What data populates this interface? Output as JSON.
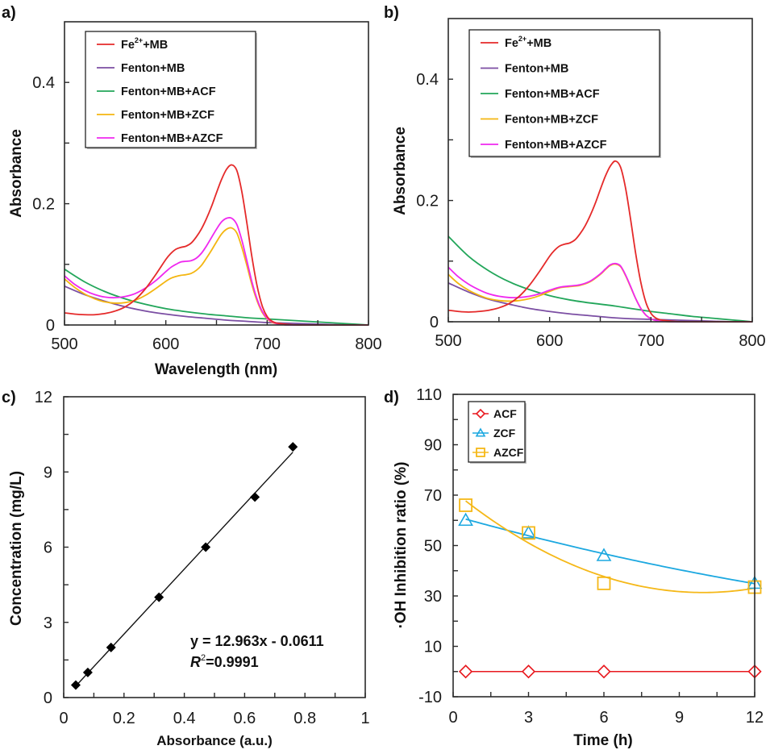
{
  "figure": {
    "panels": [
      "a)",
      "b)",
      "c)",
      "d)"
    ]
  },
  "chart_data": [
    {
      "id": "a",
      "type": "line",
      "panel_label": "a)",
      "title": "",
      "xlabel": "Wavelength (nm)",
      "ylabel": "Absorbance",
      "xlim": [
        500,
        800
      ],
      "ylim": [
        0,
        0.5
      ],
      "xticks": [
        500,
        600,
        700,
        800
      ],
      "xminor": [
        550,
        650,
        750
      ],
      "yticks": [
        0,
        0.2,
        0.4
      ],
      "ytick_labels": [
        "0",
        "0.2",
        "0.4"
      ],
      "yminor": [
        0.1,
        0.3
      ],
      "legend_position": "top-left",
      "series": [
        {
          "name": "Fe2+ +MB",
          "label_main": "Fe",
          "label_sup": "2+",
          "label_tail": "+MB",
          "color": "#e52a2a",
          "x": [
            500,
            510,
            520,
            530,
            540,
            550,
            560,
            570,
            580,
            590,
            600,
            605,
            610,
            615,
            620,
            625,
            630,
            635,
            640,
            645,
            650,
            655,
            660,
            665,
            670,
            675,
            680,
            685,
            690,
            695,
            700,
            705,
            710,
            715,
            720,
            730,
            740,
            760,
            780,
            800
          ],
          "y": [
            0.02,
            0.018,
            0.017,
            0.017,
            0.019,
            0.023,
            0.03,
            0.042,
            0.06,
            0.083,
            0.108,
            0.118,
            0.125,
            0.128,
            0.13,
            0.135,
            0.145,
            0.158,
            0.175,
            0.195,
            0.218,
            0.24,
            0.257,
            0.264,
            0.255,
            0.22,
            0.168,
            0.112,
            0.065,
            0.032,
            0.014,
            0.006,
            0.003,
            0.002,
            0.001,
            0.0,
            0.0,
            0.0,
            0.0,
            0.0
          ]
        },
        {
          "name": "Fenton+MB",
          "label_main": "Fenton+MB",
          "label_sup": "",
          "label_tail": "",
          "color": "#7b4ea3",
          "x": [
            500,
            520,
            540,
            560,
            580,
            600,
            620,
            640,
            660,
            680,
            700,
            720,
            740,
            760,
            780,
            800
          ],
          "y": [
            0.064,
            0.05,
            0.039,
            0.03,
            0.023,
            0.018,
            0.014,
            0.011,
            0.008,
            0.006,
            0.004,
            0.003,
            0.002,
            0.001,
            0.0,
            0.0
          ]
        },
        {
          "name": "Fenton+MB+ACF",
          "label_main": "Fenton+MB+ACF",
          "label_sup": "",
          "label_tail": "",
          "color": "#22a65a",
          "x": [
            500,
            520,
            540,
            560,
            580,
            600,
            620,
            640,
            660,
            680,
            700,
            720,
            740,
            760,
            780,
            800
          ],
          "y": [
            0.092,
            0.071,
            0.055,
            0.043,
            0.034,
            0.027,
            0.022,
            0.018,
            0.015,
            0.012,
            0.01,
            0.008,
            0.006,
            0.004,
            0.002,
            0.0
          ]
        },
        {
          "name": "Fenton+MB+ZCF",
          "label_main": "Fenton+MB+ZCF",
          "label_sup": "",
          "label_tail": "",
          "color": "#f4b611",
          "x": [
            500,
            510,
            520,
            530,
            540,
            550,
            560,
            570,
            580,
            590,
            600,
            605,
            610,
            615,
            620,
            625,
            630,
            635,
            640,
            645,
            650,
            655,
            660,
            665,
            670,
            675,
            680,
            685,
            690,
            695,
            700,
            705,
            710,
            715,
            720,
            740,
            760,
            800
          ],
          "y": [
            0.076,
            0.062,
            0.051,
            0.043,
            0.038,
            0.036,
            0.037,
            0.041,
            0.049,
            0.06,
            0.072,
            0.077,
            0.08,
            0.082,
            0.083,
            0.085,
            0.09,
            0.098,
            0.11,
            0.123,
            0.137,
            0.15,
            0.158,
            0.16,
            0.152,
            0.128,
            0.098,
            0.066,
            0.04,
            0.021,
            0.01,
            0.004,
            0.002,
            0.001,
            0.0,
            0.0,
            0.0,
            0.0
          ]
        },
        {
          "name": "Fenton+MB+AZCF",
          "label_main": "Fenton+MB+AZCF",
          "label_sup": "",
          "label_tail": "",
          "color": "#ef28ef",
          "x": [
            500,
            510,
            520,
            530,
            540,
            550,
            560,
            570,
            580,
            590,
            600,
            605,
            610,
            615,
            620,
            625,
            630,
            635,
            640,
            645,
            650,
            655,
            660,
            665,
            670,
            675,
            680,
            685,
            690,
            695,
            700,
            705,
            710,
            715,
            720,
            740,
            760,
            800
          ],
          "y": [
            0.081,
            0.067,
            0.057,
            0.05,
            0.046,
            0.045,
            0.047,
            0.052,
            0.061,
            0.073,
            0.088,
            0.095,
            0.1,
            0.104,
            0.105,
            0.106,
            0.11,
            0.118,
            0.13,
            0.144,
            0.158,
            0.17,
            0.176,
            0.176,
            0.166,
            0.14,
            0.106,
            0.071,
            0.043,
            0.023,
            0.011,
            0.005,
            0.002,
            0.001,
            0.0,
            0.0,
            0.0,
            0.0
          ]
        }
      ]
    },
    {
      "id": "b",
      "type": "line",
      "panel_label": "b)",
      "title": "",
      "xlabel": "",
      "ylabel": "Absorbance",
      "xlim": [
        500,
        800
      ],
      "ylim": [
        0,
        0.5
      ],
      "xticks": [
        500,
        600,
        700,
        800
      ],
      "xminor": [
        550,
        650,
        750
      ],
      "yticks": [
        0,
        0.2,
        0.4
      ],
      "ytick_labels": [
        "0",
        "0.2",
        "0.4"
      ],
      "yminor": [
        0.1,
        0.3
      ],
      "legend_position": "top-left",
      "series": [
        {
          "name": "Fe2+ +MB",
          "label_main": "Fe",
          "label_sup": "2+",
          "label_tail": "+MB",
          "color": "#e52a2a",
          "x": [
            500,
            510,
            520,
            530,
            540,
            550,
            560,
            570,
            580,
            590,
            600,
            605,
            610,
            615,
            620,
            625,
            630,
            635,
            640,
            645,
            650,
            655,
            660,
            665,
            670,
            675,
            680,
            685,
            690,
            695,
            700,
            705,
            710,
            715,
            720,
            730,
            740,
            760,
            780,
            800
          ],
          "y": [
            0.019,
            0.017,
            0.016,
            0.017,
            0.019,
            0.023,
            0.03,
            0.042,
            0.06,
            0.083,
            0.108,
            0.118,
            0.125,
            0.128,
            0.13,
            0.135,
            0.145,
            0.158,
            0.175,
            0.195,
            0.218,
            0.24,
            0.257,
            0.265,
            0.255,
            0.22,
            0.168,
            0.112,
            0.065,
            0.032,
            0.014,
            0.006,
            0.003,
            0.002,
            0.001,
            0.0,
            0.0,
            0.0,
            0.0,
            0.0
          ]
        },
        {
          "name": "Fenton+MB",
          "label_main": "Fenton+MB",
          "label_sup": "",
          "label_tail": "",
          "color": "#7b4ea3",
          "x": [
            500,
            520,
            540,
            560,
            580,
            600,
            620,
            640,
            660,
            680,
            700,
            720,
            740,
            760,
            780,
            800
          ],
          "y": [
            0.064,
            0.049,
            0.037,
            0.029,
            0.022,
            0.017,
            0.013,
            0.01,
            0.007,
            0.005,
            0.004,
            0.003,
            0.002,
            0.001,
            0.0,
            0.0
          ]
        },
        {
          "name": "Fenton+MB+ACF",
          "label_main": "Fenton+MB+ACF",
          "label_sup": "",
          "label_tail": "",
          "color": "#22a65a",
          "x": [
            500,
            520,
            540,
            560,
            580,
            600,
            620,
            640,
            660,
            680,
            700,
            720,
            740,
            760,
            780,
            800
          ],
          "y": [
            0.141,
            0.108,
            0.084,
            0.066,
            0.053,
            0.043,
            0.036,
            0.031,
            0.027,
            0.022,
            0.017,
            0.013,
            0.009,
            0.006,
            0.003,
            0.0
          ]
        },
        {
          "name": "Fenton+MB+ZCF",
          "label_main": "Fenton+MB+ZCF",
          "label_sup": "",
          "label_tail": "",
          "color": "#f4b611",
          "x": [
            500,
            510,
            520,
            530,
            540,
            550,
            560,
            570,
            580,
            590,
            600,
            610,
            620,
            630,
            640,
            650,
            655,
            660,
            665,
            670,
            675,
            680,
            685,
            690,
            695,
            700,
            705,
            710,
            720,
            740,
            760,
            800
          ],
          "y": [
            0.078,
            0.063,
            0.052,
            0.044,
            0.038,
            0.035,
            0.034,
            0.035,
            0.038,
            0.043,
            0.05,
            0.056,
            0.058,
            0.06,
            0.066,
            0.078,
            0.086,
            0.093,
            0.095,
            0.091,
            0.076,
            0.057,
            0.038,
            0.022,
            0.011,
            0.005,
            0.002,
            0.001,
            0.0,
            0.0,
            0.0,
            0.0
          ]
        },
        {
          "name": "Fenton+MB+AZCF",
          "label_main": "Fenton+MB+AZCF",
          "label_sup": "",
          "label_tail": "",
          "color": "#ef28ef",
          "x": [
            500,
            510,
            520,
            530,
            540,
            550,
            560,
            570,
            580,
            590,
            600,
            610,
            620,
            630,
            640,
            650,
            655,
            660,
            665,
            670,
            675,
            680,
            685,
            690,
            695,
            700,
            705,
            710,
            720,
            740,
            760,
            800
          ],
          "y": [
            0.09,
            0.074,
            0.062,
            0.053,
            0.046,
            0.042,
            0.04,
            0.04,
            0.042,
            0.046,
            0.052,
            0.057,
            0.059,
            0.061,
            0.067,
            0.079,
            0.087,
            0.094,
            0.096,
            0.092,
            0.077,
            0.058,
            0.038,
            0.022,
            0.011,
            0.005,
            0.002,
            0.001,
            0.0,
            0.0,
            0.0,
            0.0
          ]
        }
      ]
    },
    {
      "id": "c",
      "type": "scatter",
      "panel_label": "c)",
      "title": "",
      "xlabel": "Absorbance (a.u.)",
      "ylabel": "Concentration (mg/L)",
      "xlim": [
        0,
        1
      ],
      "ylim": [
        0,
        12
      ],
      "xticks": [
        0,
        0.2,
        0.4,
        0.6,
        0.8,
        1
      ],
      "xtick_labels": [
        "0",
        "0.2",
        "0.4",
        "0.6",
        "0.8",
        "1"
      ],
      "xminor": [
        0.1,
        0.3,
        0.5,
        0.7,
        0.9
      ],
      "yticks": [
        0,
        3,
        6,
        9,
        12
      ],
      "ytick_labels": [
        "0",
        "3",
        "6",
        "9",
        "12"
      ],
      "yminor": [
        1.5,
        4.5,
        7.5,
        10.5
      ],
      "marker": "diamond",
      "color": "#000000",
      "points": {
        "x": [
          0.04,
          0.08,
          0.157,
          0.316,
          0.471,
          0.634,
          0.76
        ],
        "y": [
          0.5,
          1,
          2,
          4,
          6,
          8,
          10
        ]
      },
      "fit": {
        "slope": 12.963,
        "intercept": -0.0611,
        "x_range": [
          0.04,
          0.76
        ]
      },
      "annotation": {
        "equation": "y = 12.963x - 0.0611",
        "r2_symbol": "R",
        "r2_sup": "2",
        "r2_value": "=0.9991"
      }
    },
    {
      "id": "d",
      "type": "scatter",
      "panel_label": "d)",
      "title": "",
      "xlabel": "Time (h)",
      "ylabel": "·OH Inhibition ratio (%)",
      "xlim": [
        0,
        12
      ],
      "ylim": [
        -10,
        110
      ],
      "xticks": [
        0,
        3,
        6,
        9,
        12
      ],
      "xtick_labels": [
        "0",
        "3",
        "6",
        "9",
        "12"
      ],
      "xminor": [
        1.5,
        4.5,
        7.5,
        10.5
      ],
      "yticks": [
        -10,
        10,
        30,
        50,
        70,
        90,
        110
      ],
      "ytick_labels": [
        "-10",
        "10",
        "30",
        "50",
        "70",
        "90",
        "110"
      ],
      "yminor": [
        0,
        20,
        40,
        60,
        80,
        100
      ],
      "legend_position": "top-left",
      "series": [
        {
          "name": "ACF",
          "marker": "diamond",
          "color": "#e8191f",
          "x": [
            0.5,
            3,
            6,
            12
          ],
          "y": [
            0,
            0,
            0,
            0
          ],
          "trend": "linear"
        },
        {
          "name": "ZCF",
          "marker": "triangle",
          "color": "#1ca8e0",
          "x": [
            0.5,
            3,
            6,
            12
          ],
          "y": [
            60,
            55,
            46,
            35
          ],
          "trend": "polynomial"
        },
        {
          "name": "AZCF",
          "marker": "square",
          "color": "#f5b818",
          "x": [
            0.5,
            3,
            6,
            12
          ],
          "y": [
            66,
            55,
            35,
            33.5
          ],
          "trend": "polynomial"
        }
      ]
    }
  ]
}
